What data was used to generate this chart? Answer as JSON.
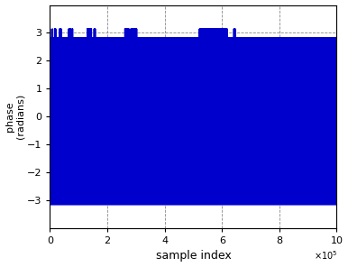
{
  "title": "",
  "xlabel": "sample index",
  "ylabel": "phase\n(radians)",
  "xlim": [
    0,
    10
  ],
  "ylim": [
    -4,
    4
  ],
  "xticks": [
    0,
    2,
    4,
    6,
    8,
    10
  ],
  "yticks": [
    -3,
    -2,
    -1,
    0,
    1,
    2,
    3
  ],
  "x_scale_exponent": 5,
  "epsilon": 0.01,
  "line_color": "#0000cc",
  "background_color": "#ffffff",
  "grid_color": "#888888",
  "grid_style": "--",
  "linewidth": 1.2
}
